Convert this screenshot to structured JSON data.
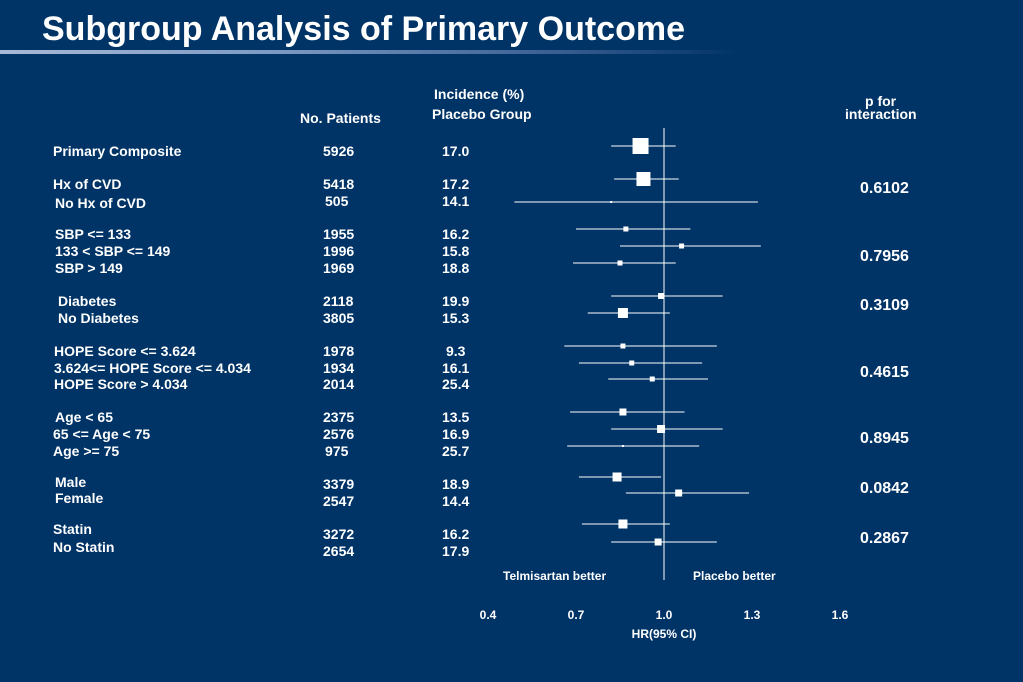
{
  "title": "Subgroup Analysis of Primary Outcome",
  "headers": {
    "no_patients": "No. Patients",
    "incidence_line1": "Incidence (%)",
    "incidence_line2": "Placebo Group",
    "p_line1": "p for",
    "p_line2": "interaction"
  },
  "colors": {
    "background": "#003366",
    "text": "#ffffff",
    "title_rule": "#8aa6cf"
  },
  "chart_data": {
    "type": "forest",
    "xlabel": "HR(95% CI)",
    "xlim": [
      0.4,
      1.6
    ],
    "xticks": [
      "0.4",
      "0.7",
      "1.0",
      "1.3",
      "1.6"
    ],
    "reference_line": 1.0,
    "left_annotation": "Telmisartan better",
    "right_annotation": "Placebo better",
    "rows": [
      {
        "label": "Primary Composite",
        "n": "5926",
        "incidence": "17.0",
        "hr": 0.92,
        "lo": 0.82,
        "hi": 1.04
      },
      {
        "label": "Hx of CVD",
        "n": "5418",
        "incidence": "17.2",
        "hr": 0.93,
        "lo": 0.83,
        "hi": 1.05
      },
      {
        "label": "No Hx of CVD",
        "n": "505",
        "incidence": "14.1",
        "hr": 0.82,
        "lo": 0.49,
        "hi": 1.32
      },
      {
        "label": "SBP <= 133",
        "n": "1955",
        "incidence": "16.2",
        "hr": 0.87,
        "lo": 0.7,
        "hi": 1.09
      },
      {
        "label": "133 < SBP <= 149",
        "n": "1996",
        "incidence": "15.8",
        "hr": 1.06,
        "lo": 0.85,
        "hi": 1.33
      },
      {
        "label": "SBP > 149",
        "n": "1969",
        "incidence": "18.8",
        "hr": 0.85,
        "lo": 0.69,
        "hi": 1.04
      },
      {
        "label": "Diabetes",
        "n": "2118",
        "incidence": "19.9",
        "hr": 0.99,
        "lo": 0.82,
        "hi": 1.2
      },
      {
        "label": "No Diabetes",
        "n": "3805",
        "incidence": "15.3",
        "hr": 0.86,
        "lo": 0.74,
        "hi": 1.02
      },
      {
        "label": "HOPE Score <= 3.624",
        "n": "1978",
        "incidence": "9.3",
        "hr": 0.86,
        "lo": 0.66,
        "hi": 1.18
      },
      {
        "label": "3.624<= HOPE Score <= 4.034",
        "n": "1934",
        "incidence": "16.1",
        "hr": 0.89,
        "lo": 0.71,
        "hi": 1.13
      },
      {
        "label": "HOPE Score > 4.034",
        "n": "2014",
        "incidence": "25.4",
        "hr": 0.96,
        "lo": 0.81,
        "hi": 1.15
      },
      {
        "label": "Age < 65",
        "n": "2375",
        "incidence": "13.5",
        "hr": 0.86,
        "lo": 0.68,
        "hi": 1.07
      },
      {
        "label": "65 <= Age < 75",
        "n": "2576",
        "incidence": "16.9",
        "hr": 0.99,
        "lo": 0.82,
        "hi": 1.2
      },
      {
        "label": "Age >= 75",
        "n": "975",
        "incidence": "25.7",
        "hr": 0.86,
        "lo": 0.67,
        "hi": 1.12
      },
      {
        "label": "Male",
        "n": "3379",
        "incidence": "18.9",
        "hr": 0.84,
        "lo": 0.71,
        "hi": 0.99
      },
      {
        "label": "Female",
        "n": "2547",
        "incidence": "14.4",
        "hr": 1.05,
        "lo": 0.87,
        "hi": 1.29
      },
      {
        "label": "Statin",
        "n": "3272",
        "incidence": "16.2",
        "hr": 0.86,
        "lo": 0.72,
        "hi": 1.02
      },
      {
        "label": "No Statin",
        "n": "2654",
        "incidence": "17.9",
        "hr": 0.98,
        "lo": 0.82,
        "hi": 1.18
      }
    ],
    "p_interaction": [
      "0.6102",
      "0.7956",
      "0.3109",
      "0.4615",
      "0.8945",
      "0.0842",
      "0.2867"
    ]
  }
}
